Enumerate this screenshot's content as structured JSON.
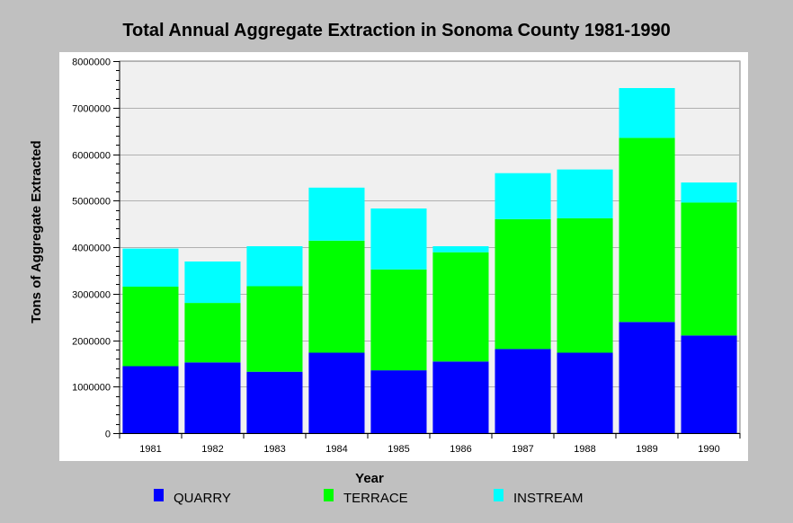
{
  "chart_data": {
    "type": "bar",
    "stacked": true,
    "title": "Total Annual Aggregate Extraction in Sonoma County 1981-1990",
    "xlabel": "Year",
    "ylabel": "Tons of Aggregate Extracted",
    "ylim": [
      0,
      8000000
    ],
    "yticks": [
      "0",
      "1000000",
      "2000000",
      "3000000",
      "4000000",
      "5000000",
      "6000000",
      "7000000",
      "8000000"
    ],
    "grid": true,
    "legend_position": "bottom",
    "categories": [
      "1981",
      "1982",
      "1983",
      "1984",
      "1985",
      "1986",
      "1987",
      "1988",
      "1989",
      "1990"
    ],
    "series": [
      {
        "name": "QUARRY",
        "color": "#0000ff",
        "values": [
          1440000,
          1520000,
          1320000,
          1730000,
          1350000,
          1540000,
          1810000,
          1730000,
          2390000,
          2100000
        ]
      },
      {
        "name": "TERRACE",
        "color": "#00ff00",
        "values": [
          1710000,
          1280000,
          1840000,
          2410000,
          2170000,
          2350000,
          2790000,
          2890000,
          3960000,
          2860000
        ]
      },
      {
        "name": "INSTREAM",
        "color": "#00ffff",
        "values": [
          820000,
          890000,
          860000,
          1140000,
          1310000,
          130000,
          990000,
          1050000,
          1070000,
          430000
        ]
      }
    ]
  }
}
